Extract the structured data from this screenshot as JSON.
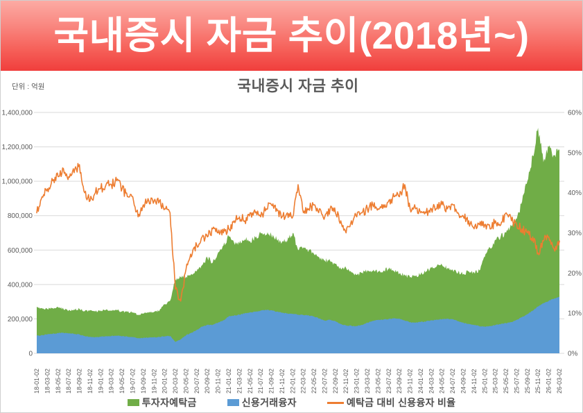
{
  "banner": {
    "title": "국내증시 자금 추이(2018년~)"
  },
  "chart": {
    "title": "국내증시 자금 추이",
    "unit_label": "단위 : 억원"
  },
  "chart_data": {
    "type": "area+line",
    "title": "국내증시 자금 추이",
    "unit": "억원",
    "grid": true,
    "legend_position": "bottom",
    "ylim_left": [
      0,
      1400000
    ],
    "ylim_right": [
      0,
      60
    ],
    "y_left_tick_labels": [
      "0",
      "200,000",
      "400,000",
      "600,000",
      "800,000",
      "1,000,000",
      "1,200,000",
      "1,400,000"
    ],
    "y_right_tick_labels": [
      "0%",
      "10%",
      "20%",
      "30%",
      "40%",
      "50%",
      "60%"
    ],
    "x_tick_labels": [
      "18-01-02",
      "18-03-02",
      "18-05-02",
      "18-07-02",
      "18-09-02",
      "18-11-02",
      "19-01-02",
      "19-03-02",
      "19-05-02",
      "19-07-02",
      "19-09-02",
      "19-11-02",
      "20-01-02",
      "20-03-02",
      "20-05-02",
      "20-07-02",
      "20-09-02",
      "20-11-02",
      "21-01-02",
      "21-03-02",
      "21-05-02",
      "21-07-02",
      "21-09-02",
      "21-11-02",
      "22-01-02",
      "22-03-02",
      "22-05-02",
      "22-07-02",
      "22-09-02",
      "22-11-02",
      "23-01-02",
      "23-03-02",
      "23-05-02",
      "23-07-02",
      "23-09-02",
      "23-11-02",
      "24-01-02",
      "24-03-02",
      "24-05-02",
      "24-07-02",
      "24-09-02",
      "24-11-02",
      "25-01-02",
      "25-03-02",
      "25-05-02",
      "25-07-02",
      "25-09-02",
      "25-11-02",
      "26-01-02",
      "26-03-02"
    ],
    "months": [
      "18-01",
      "18-02",
      "18-03",
      "18-04",
      "18-05",
      "18-06",
      "18-07",
      "18-08",
      "18-09",
      "18-10",
      "18-11",
      "18-12",
      "19-01",
      "19-02",
      "19-03",
      "19-04",
      "19-05",
      "19-06",
      "19-07",
      "19-08",
      "19-09",
      "19-10",
      "19-11",
      "19-12",
      "20-01",
      "20-02",
      "20-03",
      "20-04",
      "20-05",
      "20-06",
      "20-07",
      "20-08",
      "20-09",
      "20-10",
      "20-11",
      "20-12",
      "21-01",
      "21-02",
      "21-03",
      "21-04",
      "21-05",
      "21-06",
      "21-07",
      "21-08",
      "21-09",
      "21-10",
      "21-11",
      "21-12",
      "22-01",
      "22-02",
      "22-03",
      "22-04",
      "22-05",
      "22-06",
      "22-07",
      "22-08",
      "22-09",
      "22-10",
      "22-11",
      "22-12",
      "23-01",
      "23-02",
      "23-03",
      "23-04",
      "23-05",
      "23-06",
      "23-07",
      "23-08",
      "23-09",
      "23-10",
      "23-11",
      "23-12",
      "24-01",
      "24-02",
      "24-03",
      "24-04",
      "24-05",
      "24-06",
      "24-07",
      "24-08",
      "24-09",
      "24-10",
      "24-11",
      "24-12",
      "25-01",
      "25-02",
      "25-03",
      "25-04",
      "25-05",
      "25-06",
      "25-07",
      "25-08",
      "25-09",
      "25-10",
      "25-11",
      "25-12",
      "26-01",
      "26-02",
      "26-03"
    ],
    "series": [
      {
        "name": "투자자예탁금",
        "type": "area",
        "axis": "left",
        "color": "#70AD47",
        "values": [
          270000,
          262000,
          258000,
          263000,
          268000,
          258000,
          250000,
          254000,
          258000,
          245000,
          250000,
          243000,
          249000,
          253000,
          248000,
          251000,
          243000,
          240000,
          238000,
          225000,
          231000,
          236000,
          241000,
          248000,
          285000,
          305000,
          430000,
          442000,
          446000,
          462000,
          476000,
          512000,
          556000,
          528000,
          586000,
          626000,
          680000,
          642000,
          638000,
          662000,
          652000,
          672000,
          698000,
          690000,
          686000,
          662000,
          648000,
          656000,
          700000,
          600000,
          616000,
          598000,
          576000,
          556000,
          540000,
          538000,
          520000,
          492000,
          496000,
          470000,
          456000,
          470000,
          481000,
          477000,
          476000,
          481000,
          491000,
          478000,
          464000,
          455000,
          441000,
          448000,
          461000,
          476000,
          497000,
          506000,
          513000,
          497000,
          485000,
          470000,
          462000,
          477000,
          470000,
          481000,
          560000,
          612000,
          660000,
          681000,
          701000,
          741000,
          781000,
          881000,
          1001000,
          1151000,
          1311000,
          1111000,
          1201000,
          1151000,
          1181000
        ]
      },
      {
        "name": "신용거래융자",
        "type": "area",
        "axis": "left",
        "color": "#5B9BD5",
        "values": [
          102000,
          106000,
          110000,
          114000,
          117000,
          120000,
          116000,
          112000,
          110000,
          100000,
          96000,
          94000,
          96000,
          99000,
          101000,
          103000,
          100000,
          97000,
          95000,
          88000,
          90000,
          91000,
          93000,
          95000,
          98000,
          101000,
          65000,
          82000,
          105000,
          120000,
          135000,
          155000,
          165000,
          166000,
          178000,
          192000,
          215000,
          220000,
          224000,
          232000,
          238000,
          242000,
          248000,
          252000,
          250000,
          242000,
          236000,
          232000,
          230000,
          225000,
          222000,
          220000,
          214000,
          202000,
          190000,
          194000,
          186000,
          170000,
          162000,
          160000,
          158000,
          165000,
          178000,
          188000,
          194000,
          196000,
          200000,
          203000,
          202000,
          190000,
          180000,
          178000,
          182000,
          186000,
          192000,
          196000,
          198000,
          200000,
          198000,
          186000,
          178000,
          170000,
          165000,
          158000,
          155000,
          158000,
          165000,
          170000,
          175000,
          182000,
          195000,
          210000,
          228000,
          248000,
          272000,
          290000,
          305000,
          318000,
          328000
        ]
      },
      {
        "name": "예탁금 대비 신용융자 비율",
        "type": "line",
        "axis": "right",
        "color": "#ED7D31",
        "values": [
          35,
          39,
          41,
          43,
          44,
          46,
          44,
          45,
          47,
          40,
          38,
          40,
          41,
          42,
          42,
          43,
          41,
          39,
          39,
          34,
          37,
          38,
          38,
          38,
          36,
          35,
          16,
          13,
          21,
          24,
          27,
          29,
          29,
          31,
          30,
          30,
          31,
          33,
          34,
          33,
          35,
          35,
          34,
          36,
          37,
          36,
          34,
          35,
          34,
          42,
          35,
          36,
          37,
          36,
          34,
          36,
          35,
          33,
          30,
          33,
          34,
          35,
          36,
          37,
          36,
          37,
          38,
          39,
          39,
          42,
          36,
          36,
          35,
          35,
          36,
          36,
          37,
          36,
          37,
          35,
          34,
          33,
          31,
          32,
          32,
          31,
          33,
          32,
          35,
          33,
          32,
          31,
          30,
          29,
          25,
          28,
          29,
          26,
          28
        ]
      }
    ]
  }
}
